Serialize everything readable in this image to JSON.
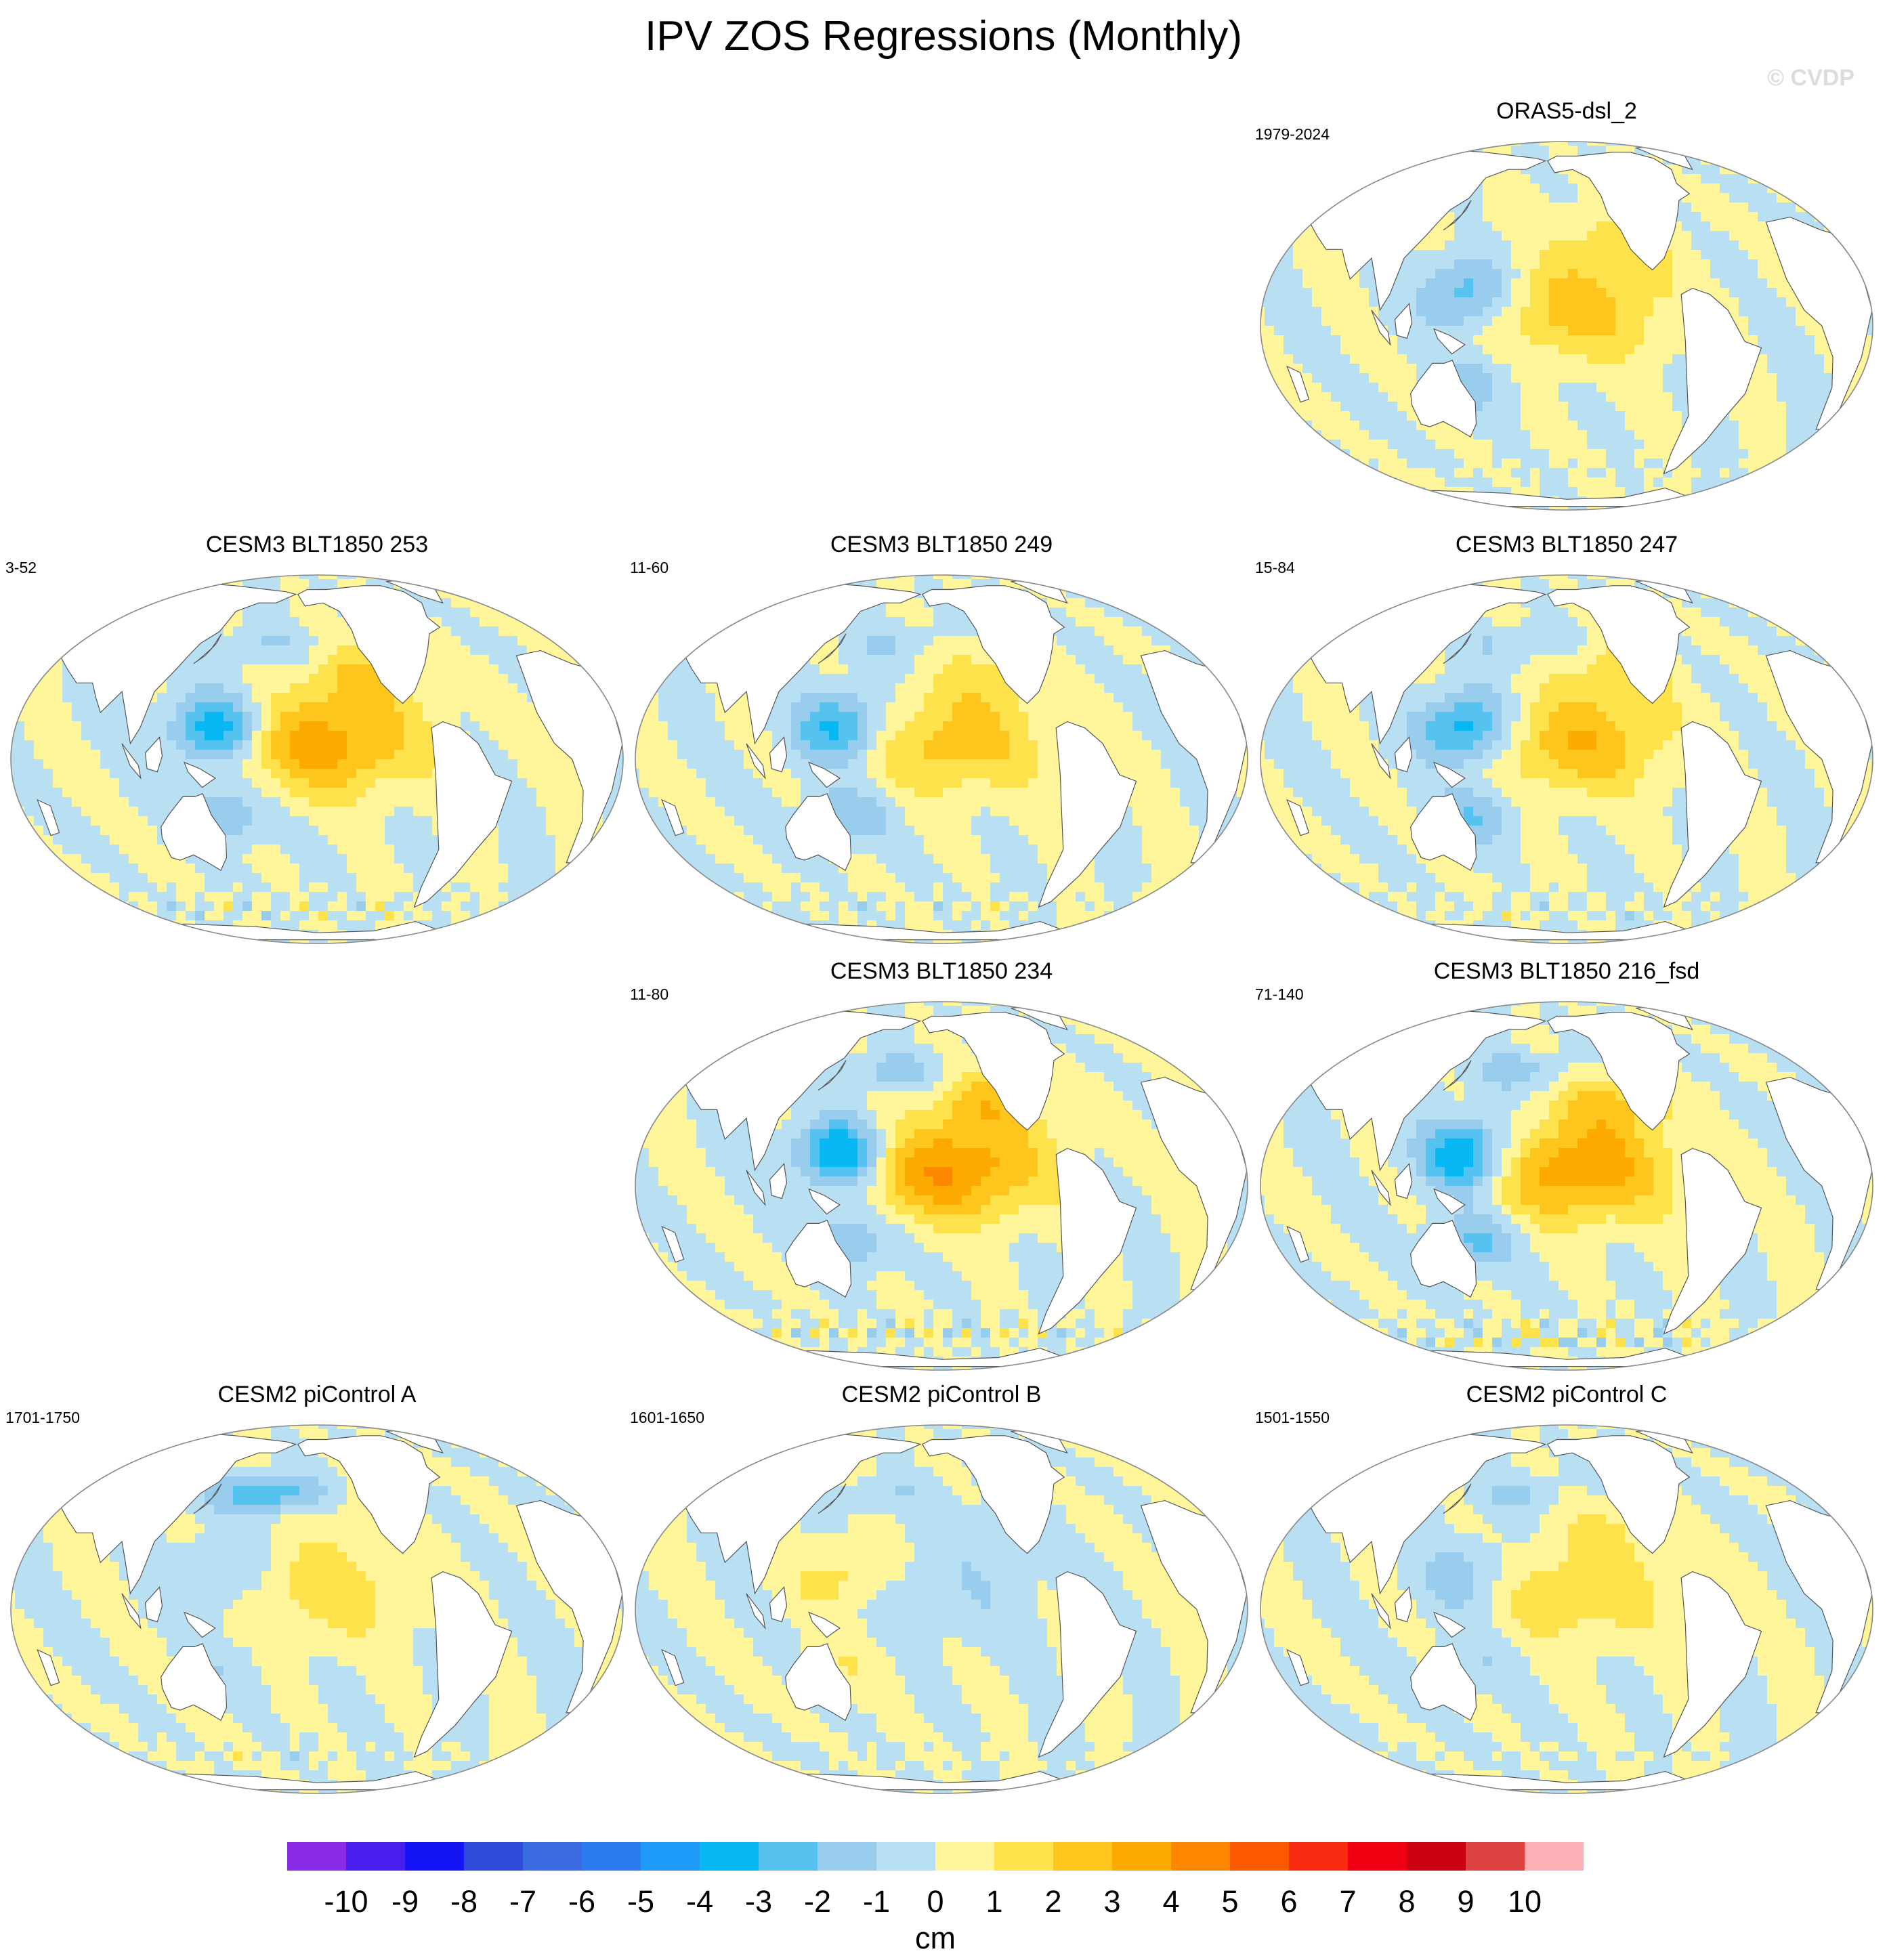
{
  "figure": {
    "title": "IPV ZOS Regressions (Monthly)",
    "watermark": "© CVDP"
  },
  "chart_data": {
    "type": "heatmap",
    "title": "IPV ZOS Regressions (Monthly)",
    "projection": "Robinson (Pacific-centered)",
    "variable": "ZOS regression onto IPV index",
    "units": "cm",
    "levels": [
      -10,
      -9,
      -8,
      -7,
      -6,
      -5,
      -4,
      -3,
      -2,
      -1,
      0,
      1,
      2,
      3,
      4,
      5,
      6,
      7,
      8,
      9,
      10
    ],
    "colors": [
      "#8a2be8",
      "#4b1ef0",
      "#1414f5",
      "#2e4bdc",
      "#3a6be0",
      "#2a7cf0",
      "#1d9af7",
      "#08b8f5",
      "#55c2f0",
      "#98cdee",
      "#b8dff2",
      "#fff59a",
      "#fde24c",
      "#fec51c",
      "#fdab00",
      "#fd8800",
      "#fd5a00",
      "#f82a10",
      "#ef0010",
      "#c80010",
      "#df4040",
      "#fab0b5"
    ],
    "panels": [
      {
        "title": "ORAS5-dsl_2",
        "period": "1979-2024",
        "pattern": {
          "ep": 2.5,
          "wp": -3.0,
          "np": 0.5,
          "so": 0.8
        }
      },
      {
        "title": "CESM3 BLT1850 253",
        "period": "3-52",
        "pattern": {
          "ep": 3.5,
          "wp": -4.0,
          "np": -1.0,
          "so": 1.5
        }
      },
      {
        "title": "CESM3 BLT1850 249",
        "period": "11-60",
        "pattern": {
          "ep": 2.5,
          "wp": -3.5,
          "np": -1.0,
          "so": 1.2
        }
      },
      {
        "title": "CESM3 BLT1850 247",
        "period": "15-84",
        "pattern": {
          "ep": 2.8,
          "wp": -4.0,
          "np": -1.2,
          "so": 1.3
        }
      },
      {
        "title": "CESM3 BLT1850 234",
        "period": "11-80",
        "pattern": {
          "ep": 4.0,
          "wp": -4.5,
          "np": -1.5,
          "so": 2.0
        }
      },
      {
        "title": "CESM3 BLT1850 216_fsd",
        "period": "71-140",
        "pattern": {
          "ep": 3.8,
          "wp": -4.5,
          "np": -1.5,
          "so": 2.0
        }
      },
      {
        "title": "CESM2 piControl A",
        "period": "1701-1750",
        "pattern": {
          "ep": 1.5,
          "wp": -1.5,
          "np": -3.0,
          "so": 1.0
        }
      },
      {
        "title": "CESM2 piControl B",
        "period": "1601-1650",
        "pattern": {
          "ep": -0.8,
          "wp": 1.5,
          "np": -0.8,
          "so": 0.6
        }
      },
      {
        "title": "CESM2 piControl C",
        "period": "1501-1550",
        "pattern": {
          "ep": 1.8,
          "wp": -1.8,
          "np": -1.0,
          "so": 0.8
        }
      }
    ],
    "colorbar": {
      "tick_labels": [
        "-10",
        "-9",
        "-8",
        "-7",
        "-6",
        "-5",
        "-4",
        "-3",
        "-2",
        "-1",
        "0",
        "1",
        "2",
        "3",
        "4",
        "5",
        "6",
        "7",
        "8",
        "9",
        "10"
      ],
      "label": "cm"
    }
  }
}
